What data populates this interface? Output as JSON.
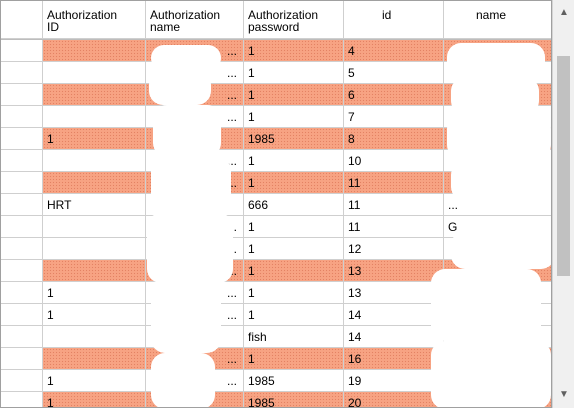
{
  "columns": {
    "auth_id": [
      "Authorization",
      "ID"
    ],
    "auth_name": [
      "Authorization",
      "name"
    ],
    "auth_password": [
      "Authorization",
      "password"
    ],
    "id": "id",
    "name": "name"
  },
  "rows": [
    {
      "auth_id": "",
      "auth_name_trunc": "...",
      "password": "1",
      "id": "4",
      "name": "",
      "highlighted": true
    },
    {
      "auth_id": "",
      "auth_name_trunc": "...",
      "password": "1",
      "id": "5",
      "name": "",
      "highlighted": false
    },
    {
      "auth_id": "",
      "auth_name_trunc": "...",
      "password": "1",
      "id": "6",
      "name": "",
      "highlighted": true
    },
    {
      "auth_id": "",
      "auth_name_trunc": "...",
      "password": "1",
      "id": "7",
      "name": "",
      "highlighted": false
    },
    {
      "auth_id": "1",
      "auth_name_trunc": "",
      "password": "1985",
      "id": "8",
      "name": "",
      "highlighted": true
    },
    {
      "auth_id": "",
      "auth_name_trunc": "...",
      "password": "1",
      "id": "10",
      "name": "",
      "highlighted": false
    },
    {
      "auth_id": "",
      "auth_name_trunc": "...",
      "password": "1",
      "id": "11",
      "name": "",
      "highlighted": true
    },
    {
      "auth_id": "HRT",
      "auth_name_trunc": "",
      "password": "666",
      "id": "11",
      "name": "...",
      "highlighted": false
    },
    {
      "auth_id": "",
      "auth_name_trunc": "...",
      "password": "1",
      "id": "11",
      "name": "G",
      "highlighted": false
    },
    {
      "auth_id": "",
      "auth_name_trunc": "...",
      "password": "1",
      "id": "12",
      "name": "",
      "highlighted": false
    },
    {
      "auth_id": "",
      "auth_name_trunc": "...",
      "password": "1",
      "id": "13",
      "name": "",
      "highlighted": true
    },
    {
      "auth_id": "1",
      "auth_name_trunc": "...",
      "password": "1",
      "id": "13",
      "name": "",
      "highlighted": false
    },
    {
      "auth_id": "1",
      "auth_name_trunc": "...",
      "password": "1",
      "id": "14",
      "name": "",
      "highlighted": false
    },
    {
      "auth_id": "",
      "auth_name_trunc": "",
      "password": "fish",
      "id": "14",
      "name": "",
      "highlighted": false
    },
    {
      "auth_id": "",
      "auth_name_trunc": "...",
      "password": "1",
      "id": "16",
      "name": "",
      "highlighted": true
    },
    {
      "auth_id": "1",
      "auth_name_trunc": "...",
      "password": "1985",
      "id": "19",
      "name": "",
      "highlighted": false
    },
    {
      "auth_id": "1",
      "auth_name_trunc": "",
      "password": "1985",
      "id": "20",
      "name": "",
      "highlighted": true
    }
  ],
  "scrollbar": {
    "up_icon": "chevron-up-icon",
    "down_icon": "chevron-down-icon"
  },
  "colors": {
    "highlight": "#f7a383"
  }
}
